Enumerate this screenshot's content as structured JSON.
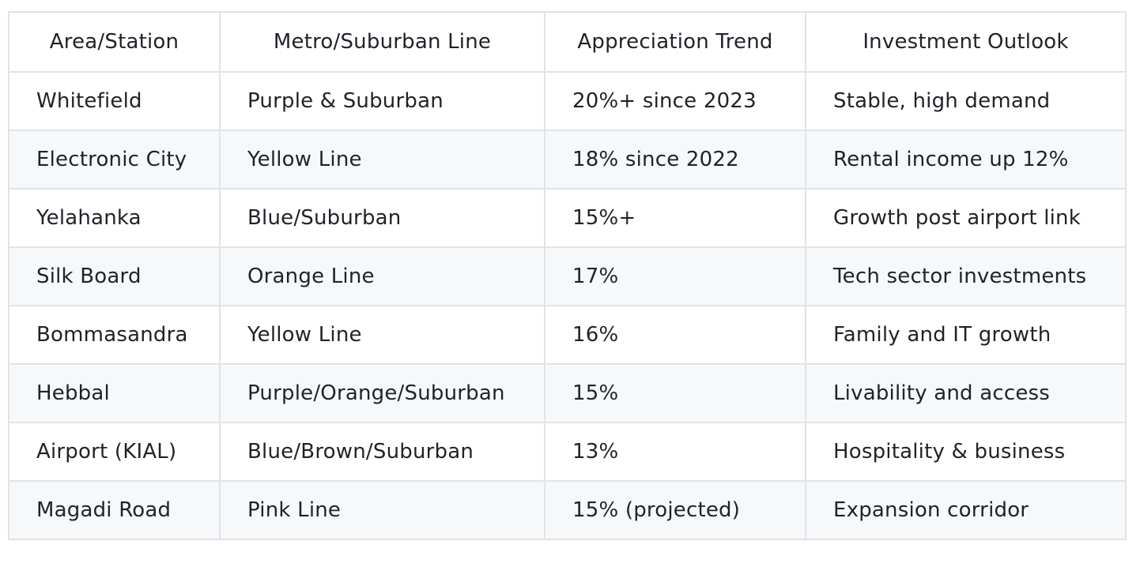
{
  "table": {
    "headers": [
      "Area/Station",
      "Metro/Suburban Line",
      "Appreciation Trend",
      "Investment Outlook"
    ],
    "rows": [
      [
        "Whitefield",
        "Purple & Suburban",
        "20%+ since 2023",
        "Stable, high demand"
      ],
      [
        "Electronic City",
        "Yellow Line",
        "18% since 2022",
        "Rental income up 12%"
      ],
      [
        "Yelahanka",
        "Blue/Suburban",
        "15%+",
        "Growth post airport link"
      ],
      [
        "Silk Board",
        "Orange Line",
        "17%",
        "Tech sector investments"
      ],
      [
        "Bommasandra",
        "Yellow Line",
        "16%",
        "Family and IT growth"
      ],
      [
        "Hebbal",
        "Purple/Orange/Suburban",
        "15%",
        "Livability and access"
      ],
      [
        "Airport (KIAL)",
        "Blue/Brown/Suburban",
        "13%",
        "Hospitality & business"
      ],
      [
        "Magadi Road",
        "Pink Line",
        "15% (projected)",
        "Expansion corridor"
      ]
    ]
  },
  "colors": {
    "border": "#e1e3e6",
    "row_alt_background": "#f6f8fa",
    "text": "#1f2328"
  }
}
